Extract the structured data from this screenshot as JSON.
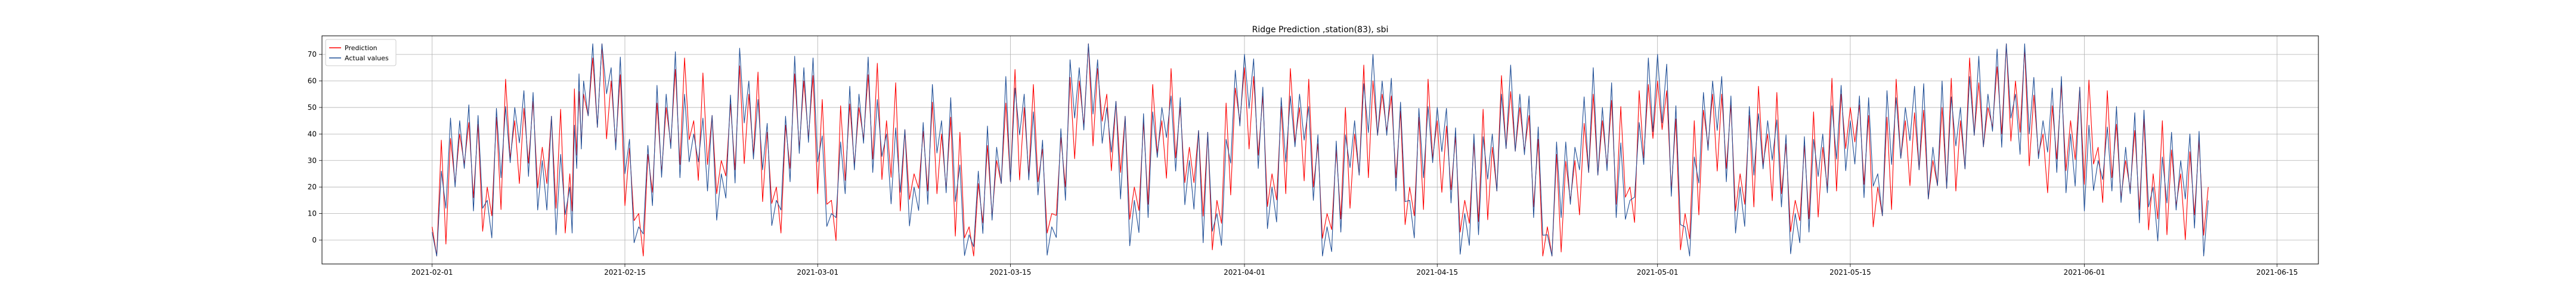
{
  "chart_data": {
    "type": "line",
    "title": "Ridge Prediction ,station(83), sbi",
    "xlabel": "",
    "ylabel": "",
    "x_axis": {
      "type": "date",
      "range": [
        "2021-01-24",
        "2021-06-18"
      ],
      "tick_labels": [
        "2021-02-01",
        "2021-02-15",
        "2021-03-01",
        "2021-03-15",
        "2021-04-01",
        "2021-04-15",
        "2021-05-01",
        "2021-05-15",
        "2021-06-01",
        "2021-06-15"
      ]
    },
    "y_axis": {
      "range": [
        -9,
        77
      ],
      "ticks": [
        0,
        10,
        20,
        30,
        40,
        50,
        60,
        70
      ]
    },
    "grid": true,
    "legend_position": "top-left",
    "series": [
      {
        "name": "Prediction",
        "color": "#ff0000",
        "dates": [
          "2021-02-01",
          "2021-02-03",
          "2021-02-05",
          "2021-02-07",
          "2021-02-09",
          "2021-02-11",
          "2021-02-12",
          "2021-02-14",
          "2021-02-16",
          "2021-02-18",
          "2021-02-20",
          "2021-02-22",
          "2021-02-24",
          "2021-02-26",
          "2021-02-28",
          "2021-03-02",
          "2021-03-04",
          "2021-03-06",
          "2021-03-08",
          "2021-03-10",
          "2021-03-12",
          "2021-03-14",
          "2021-03-16",
          "2021-03-18",
          "2021-03-20",
          "2021-03-22",
          "2021-03-24",
          "2021-03-26",
          "2021-03-28",
          "2021-03-30",
          "2021-04-01",
          "2021-04-03",
          "2021-04-05",
          "2021-04-07",
          "2021-04-09",
          "2021-04-11",
          "2021-04-13",
          "2021-04-15",
          "2021-04-17",
          "2021-04-19",
          "2021-04-21",
          "2021-04-23",
          "2021-04-25",
          "2021-04-27",
          "2021-04-29",
          "2021-05-01",
          "2021-05-03",
          "2021-05-05",
          "2021-05-07",
          "2021-05-09",
          "2021-05-11",
          "2021-05-13",
          "2021-05-15",
          "2021-05-17",
          "2021-05-19",
          "2021-05-21",
          "2021-05-23",
          "2021-05-25",
          "2021-05-27",
          "2021-05-29",
          "2021-05-31",
          "2021-06-02",
          "2021-06-04",
          "2021-06-06",
          "2021-06-08",
          "2021-06-10"
        ],
        "values": [
          5,
          40,
          20,
          45,
          35,
          25,
          55,
          60,
          10,
          50,
          45,
          30,
          55,
          20,
          60,
          15,
          50,
          45,
          25,
          40,
          5,
          30,
          50,
          10,
          60,
          55,
          20,
          45,
          35,
          15,
          65,
          25,
          50,
          10,
          40,
          55,
          20,
          45,
          15,
          35,
          50,
          5,
          30,
          45,
          20,
          60,
          10,
          55,
          25,
          40,
          15,
          35,
          50,
          20,
          45,
          30,
          45,
          50,
          60,
          40,
          45,
          35,
          30,
          25,
          25,
          20
        ]
      },
      {
        "name": "Actual values",
        "color": "#1f4e96",
        "dates": [
          "2021-02-01",
          "2021-02-03",
          "2021-02-05",
          "2021-02-07",
          "2021-02-09",
          "2021-02-11",
          "2021-02-12",
          "2021-02-14",
          "2021-02-16",
          "2021-02-18",
          "2021-02-20",
          "2021-02-22",
          "2021-02-24",
          "2021-02-26",
          "2021-02-28",
          "2021-03-02",
          "2021-03-04",
          "2021-03-06",
          "2021-03-08",
          "2021-03-10",
          "2021-03-12",
          "2021-03-14",
          "2021-03-16",
          "2021-03-18",
          "2021-03-20",
          "2021-03-22",
          "2021-03-24",
          "2021-03-26",
          "2021-03-28",
          "2021-03-30",
          "2021-04-01",
          "2021-04-03",
          "2021-04-05",
          "2021-04-07",
          "2021-04-09",
          "2021-04-11",
          "2021-04-13",
          "2021-04-15",
          "2021-04-17",
          "2021-04-19",
          "2021-04-21",
          "2021-04-23",
          "2021-04-25",
          "2021-04-27",
          "2021-04-29",
          "2021-05-01",
          "2021-05-03",
          "2021-05-05",
          "2021-05-07",
          "2021-05-09",
          "2021-05-11",
          "2021-05-13",
          "2021-05-15",
          "2021-05-17",
          "2021-05-19",
          "2021-05-21",
          "2021-05-23",
          "2021-05-25",
          "2021-05-27",
          "2021-05-29",
          "2021-05-31",
          "2021-06-02",
          "2021-06-04",
          "2021-06-06",
          "2021-06-08",
          "2021-06-10"
        ],
        "values": [
          3,
          45,
          15,
          50,
          30,
          20,
          60,
          65,
          5,
          55,
          40,
          25,
          60,
          15,
          65,
          10,
          55,
          40,
          20,
          45,
          2,
          35,
          55,
          5,
          65,
          50,
          15,
          50,
          30,
          10,
          70,
          20,
          55,
          5,
          45,
          60,
          15,
          50,
          10,
          40,
          55,
          2,
          35,
          50,
          15,
          70,
          5,
          60,
          20,
          45,
          10,
          40,
          45,
          25,
          50,
          35,
          50,
          55,
          55,
          45,
          40,
          30,
          35,
          20,
          30,
          15
        ]
      }
    ]
  }
}
